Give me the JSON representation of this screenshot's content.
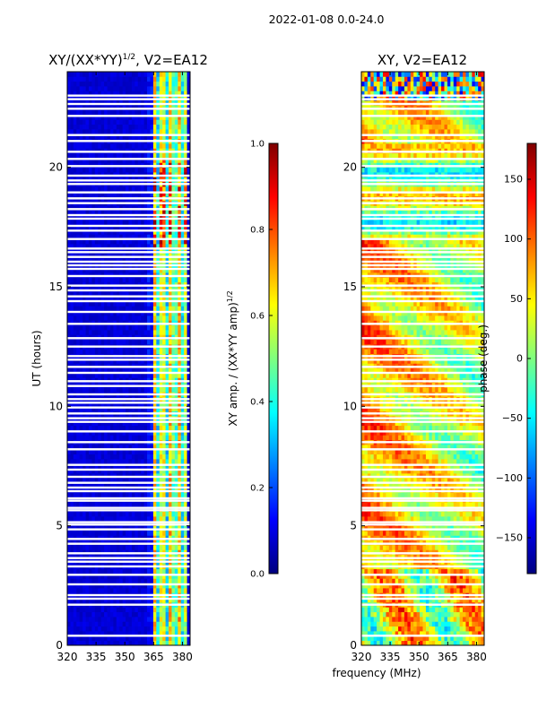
{
  "suptitle": "2022-01-08 0.0-24.0",
  "colors": {
    "jet": [
      "#00007f",
      "#0000ff",
      "#007fff",
      "#00ffff",
      "#7fff7f",
      "#ffff00",
      "#ff7f00",
      "#ff0000",
      "#7f0000"
    ]
  },
  "chart_data": [
    {
      "type": "heatmap",
      "title": "XY/(XX*YY)",
      "title_exponent": "1/2",
      "title_suffix": ", V2=EA12",
      "xlabel": "",
      "ylabel": "UT (hours)",
      "xlim": [
        320,
        384
      ],
      "ylim": [
        0,
        24
      ],
      "xticks": [
        320,
        335,
        350,
        365,
        380
      ],
      "yticks": [
        0,
        5,
        10,
        15,
        20
      ],
      "flagged_rows_hours": [
        0.4,
        1.7,
        1.95,
        2.1,
        2.55,
        2.95,
        3.3,
        3.5,
        3.65,
        3.85,
        4.25,
        4.45,
        4.85,
        5.05,
        5.15,
        5.65,
        5.75,
        6.05,
        6.15,
        6.45,
        6.6,
        6.8,
        7.05,
        7.35,
        7.55,
        8.2,
        8.5,
        8.95,
        9.35,
        9.5,
        9.7,
        9.95,
        10.15,
        10.3,
        10.5,
        10.85,
        11.05,
        11.4,
        11.65,
        11.95,
        12.1,
        12.5,
        12.85,
        13.45,
        13.95,
        14.4,
        14.6,
        14.85,
        15.05,
        15.45,
        15.75,
        15.9,
        16.05,
        16.25,
        16.45,
        16.6,
        17.0,
        17.35,
        17.55,
        17.85,
        18.0,
        18.25,
        18.5,
        18.7,
        18.95,
        19.3,
        19.45,
        19.65,
        20.05,
        20.35,
        20.65,
        21.1,
        21.35,
        22.15,
        22.45,
        22.65,
        22.85,
        23.0
      ],
      "colorbar": {
        "label": "XY amp. / (XX*YY amp)",
        "label_exponent": "1/2",
        "range": [
          0.0,
          1.0
        ],
        "ticks": [
          "0.0",
          "0.2",
          "0.4",
          "0.6",
          "0.8",
          "1.0"
        ]
      }
    },
    {
      "type": "heatmap",
      "title": "XY, V2=EA12",
      "xlabel": "frequency (MHz)",
      "ylabel": "",
      "xlim": [
        320,
        384
      ],
      "ylim": [
        0,
        24
      ],
      "xticks": [
        320,
        335,
        350,
        365,
        380
      ],
      "yticks": [
        0,
        5,
        10,
        15,
        20
      ],
      "flagged_rows_hours": [
        0.4,
        1.7,
        1.95,
        2.1,
        2.55,
        2.95,
        3.3,
        3.5,
        3.65,
        3.85,
        4.25,
        4.45,
        4.85,
        5.05,
        5.15,
        5.65,
        5.75,
        6.05,
        6.15,
        6.45,
        6.6,
        6.8,
        7.05,
        7.35,
        7.55,
        8.2,
        8.5,
        8.95,
        9.35,
        9.5,
        9.7,
        9.95,
        10.15,
        10.3,
        10.5,
        10.85,
        11.05,
        11.4,
        11.65,
        11.95,
        12.1,
        12.5,
        12.85,
        13.45,
        13.95,
        14.4,
        14.6,
        14.85,
        15.05,
        15.45,
        15.75,
        15.9,
        16.05,
        16.25,
        16.45,
        16.6,
        17.0,
        17.35,
        17.55,
        17.85,
        18.0,
        18.25,
        18.5,
        18.7,
        18.95,
        19.3,
        19.45,
        19.65,
        20.05,
        20.35,
        20.65,
        21.1,
        21.35,
        22.15,
        22.45,
        22.65,
        22.85,
        23.0
      ],
      "colorbar": {
        "label": "phase (deg.)",
        "range": [
          -180,
          180
        ],
        "ticks": [
          "150",
          "100",
          "50",
          "0",
          "−50",
          "−100",
          "−150"
        ],
        "tick_values": [
          150,
          100,
          50,
          0,
          -50,
          -100,
          -150
        ]
      }
    }
  ]
}
